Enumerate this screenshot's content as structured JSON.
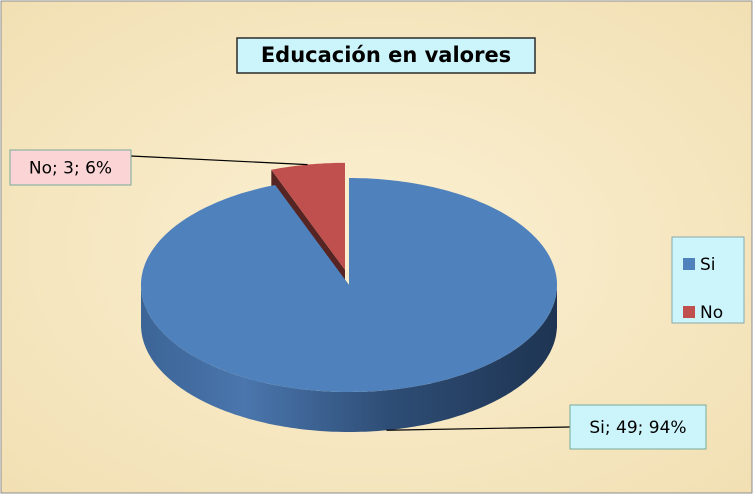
{
  "chart_data": {
    "type": "pie3d",
    "title": "Educación en valores",
    "categories": [
      "Si",
      "No"
    ],
    "values": [
      49,
      3
    ],
    "value_labels": [
      "Si; 49; 94%",
      "No; 3; 6%"
    ],
    "series": [
      {
        "name": "Si",
        "color": "#4f81bd"
      },
      {
        "name": "No",
        "color": "#c0504d"
      }
    ],
    "legend": "right"
  }
}
